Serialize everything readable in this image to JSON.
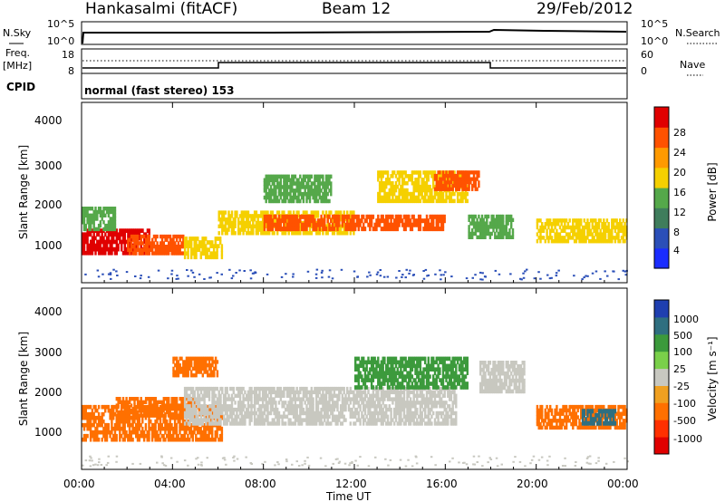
{
  "header": {
    "station": "Hankasalmi (fitACF)",
    "beam": "Beam 12",
    "date": "29/Feb/2012"
  },
  "top_panels": {
    "nsky_label": "N.Sky",
    "nsky_ticks": [
      "10^5",
      "10^0"
    ],
    "nsearch_label": "N.Search",
    "nsearch_ticks": [
      "10^5",
      "10^0"
    ],
    "freq_label": "Freq.",
    "freq_unit": "[MHz]",
    "freq_ticks": [
      "18",
      "8"
    ],
    "nave_label": "Nave",
    "nave_ticks": [
      "60",
      "0"
    ],
    "cpid_label": "CPID",
    "cpid_text": "normal (fast stereo) 153"
  },
  "power_panel": {
    "ylabel": "Slant Range [km]",
    "yticks": [
      "4000",
      "3000",
      "2000",
      "1000"
    ],
    "colorbar_label": "Power [dB]",
    "colorbar_ticks": [
      "28",
      "24",
      "20",
      "16",
      "12",
      "8",
      "4"
    ],
    "colors": [
      "#1a2cff",
      "#2b4fb8",
      "#3f7d5c",
      "#55a84a",
      "#f5d000",
      "#ff9a00",
      "#ff5200",
      "#e00000"
    ]
  },
  "velocity_panel": {
    "ylabel": "Slant Range [km]",
    "yticks": [
      "4000",
      "3000",
      "2000",
      "1000"
    ],
    "colorbar_label": "Velocity [m s⁻¹]",
    "colorbar_ticks": [
      "1000",
      "500",
      "100",
      "25",
      "-25",
      "-100",
      "-500",
      "-1000"
    ],
    "colors": [
      "#1f3fb0",
      "#2f6f80",
      "#3c9a3c",
      "#7ad04a",
      "#c8c8c0",
      "#f0a020",
      "#ff7000",
      "#ff3000",
      "#e00000"
    ]
  },
  "xaxis": {
    "ticks": [
      "00:00",
      "04:00",
      "08:00",
      "12:00",
      "16:00",
      "20:00",
      "00:00"
    ],
    "label": "Time UT"
  },
  "chart_data": [
    {
      "type": "line",
      "name": "N.Sky / N.Search",
      "x_hours": [
        0,
        0.5,
        18,
        18.1,
        24
      ],
      "y_log10": [
        4.6,
        4.6,
        4.6,
        4.8,
        4.7
      ]
    },
    {
      "type": "line",
      "name": "Frequency / Nave",
      "x_hours": [
        0,
        6,
        6,
        18,
        18,
        24
      ],
      "freq_mhz": [
        10,
        10,
        12,
        12,
        10,
        10
      ],
      "nave": [
        25,
        25,
        25,
        25,
        25,
        25
      ]
    },
    {
      "type": "heatmap",
      "name": "Power",
      "x_range_hours": [
        0,
        24
      ],
      "y_range_km": [
        0,
        4500
      ],
      "colorbar_db": [
        0,
        32
      ],
      "regions": [
        {
          "t0": 0.0,
          "t1": 3.0,
          "r0": 700,
          "r1": 1350,
          "value": 28
        },
        {
          "t0": 0.0,
          "t1": 1.5,
          "r0": 1300,
          "r1": 1900,
          "value": 14
        },
        {
          "t0": 2.0,
          "t1": 4.5,
          "r0": 700,
          "r1": 1200,
          "value": 24
        },
        {
          "t0": 4.5,
          "t1": 6.2,
          "r0": 600,
          "r1": 1150,
          "value": 16
        },
        {
          "t0": 6.0,
          "t1": 12.0,
          "r0": 1200,
          "r1": 1800,
          "value": 18
        },
        {
          "t0": 8.0,
          "t1": 16.0,
          "r0": 1300,
          "r1": 1700,
          "value": 26
        },
        {
          "t0": 13.0,
          "t1": 17.0,
          "r0": 2000,
          "r1": 2800,
          "value": 18
        },
        {
          "t0": 15.5,
          "t1": 17.5,
          "r0": 2300,
          "r1": 2800,
          "value": 26
        },
        {
          "t0": 8.0,
          "t1": 11.0,
          "r0": 2000,
          "r1": 2700,
          "value": 14
        },
        {
          "t0": 17.0,
          "t1": 19.0,
          "r0": 1100,
          "r1": 1700,
          "value": 14
        },
        {
          "t0": 20.0,
          "t1": 24.0,
          "r0": 1000,
          "r1": 1600,
          "value": 16
        }
      ]
    },
    {
      "type": "heatmap",
      "name": "Velocity",
      "x_range_hours": [
        0,
        24
      ],
      "y_range_km": [
        0,
        4500
      ],
      "regions": [
        {
          "t0": 0.0,
          "t1": 6.2,
          "r0": 700,
          "r1": 1600,
          "value": -300
        },
        {
          "t0": 1.5,
          "t1": 5.0,
          "r0": 1300,
          "r1": 1800,
          "value": -200
        },
        {
          "t0": 4.5,
          "t1": 16.5,
          "r0": 1100,
          "r1": 2050,
          "value": 0
        },
        {
          "t0": 12.0,
          "t1": 17.0,
          "r0": 2000,
          "r1": 2800,
          "value": 150
        },
        {
          "t0": 17.5,
          "t1": 19.5,
          "r0": 1900,
          "r1": 2700,
          "value": 0
        },
        {
          "t0": 4.0,
          "t1": 6.0,
          "r0": 2300,
          "r1": 2800,
          "value": -200
        },
        {
          "t0": 20.0,
          "t1": 24.0,
          "r0": 1000,
          "r1": 1600,
          "value": -200
        },
        {
          "t0": 22.0,
          "t1": 23.5,
          "r0": 1100,
          "r1": 1500,
          "value": 500
        }
      ]
    }
  ]
}
